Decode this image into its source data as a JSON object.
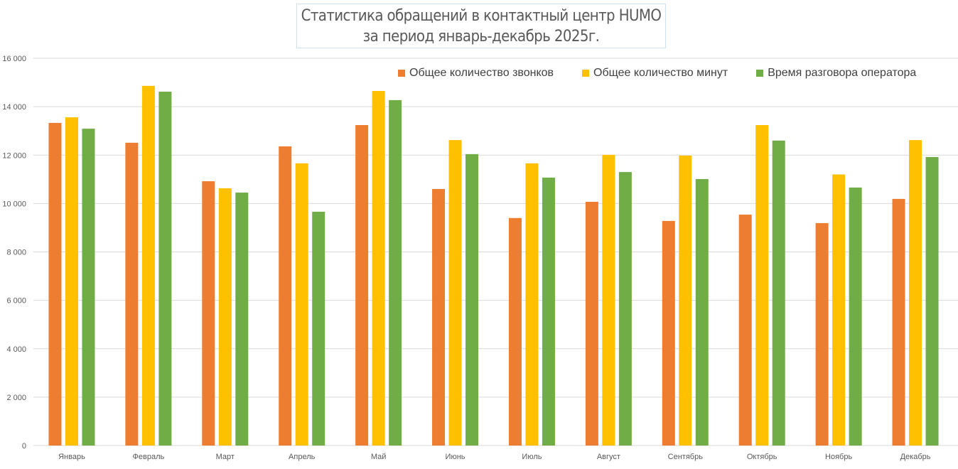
{
  "chart_data": {
    "type": "bar",
    "title": "Статистика обращений в контактный центр HUMO",
    "subtitle": "за период январь-декабрь 2025г.",
    "categories": [
      "Январь",
      "Февраль",
      "Март",
      "Апрель",
      "Май",
      "Июнь",
      "Июль",
      "Август",
      "Сентябрь",
      "Октябрь",
      "Ноябрь",
      "Декабрь"
    ],
    "series": [
      {
        "name": "Общее количество звонков",
        "color": "#ED7D31",
        "values": [
          13330,
          12510,
          10920,
          12360,
          13240,
          10600,
          9400,
          10070,
          9280,
          9540,
          9190,
          10190
        ]
      },
      {
        "name": "Общее количество минут",
        "color": "#FFC000",
        "values": [
          13560,
          14860,
          10630,
          11660,
          14650,
          12620,
          11660,
          12010,
          11980,
          13240,
          11200,
          12620
        ]
      },
      {
        "name": "Время разговора оператора",
        "color": "#70AD47",
        "values": [
          13090,
          14620,
          10450,
          9660,
          14270,
          12040,
          11070,
          11300,
          11010,
          12600,
          10660,
          11920
        ]
      }
    ],
    "ylim": [
      0,
      16000
    ],
    "yticks": [
      0,
      2000,
      4000,
      6000,
      8000,
      10000,
      12000,
      14000,
      16000
    ],
    "ytick_labels": [
      "0",
      "2 000",
      "4 000",
      "6 000",
      "8 000",
      "10 000",
      "12 000",
      "14 000",
      "16 000"
    ],
    "grid": true,
    "legend_position": "top-right"
  }
}
